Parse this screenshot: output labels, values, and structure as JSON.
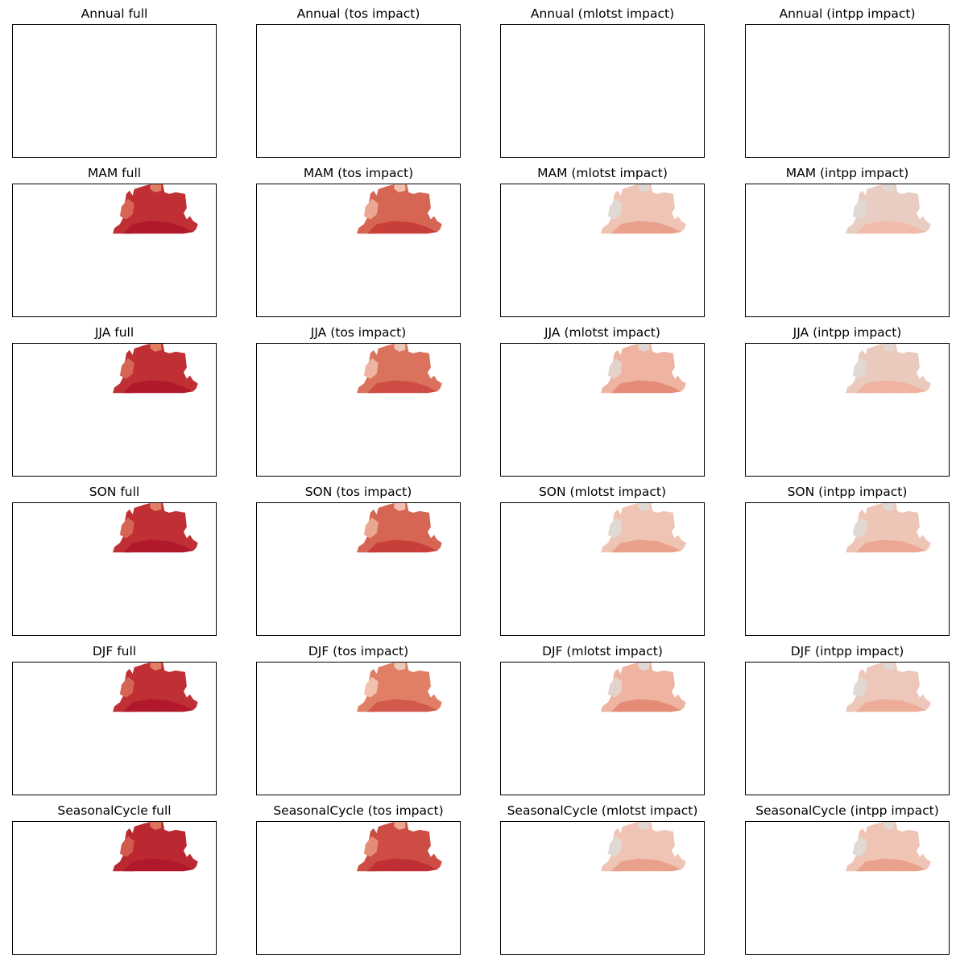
{
  "figure": {
    "rows": [
      "Annual",
      "MAM",
      "JJA",
      "SON",
      "DJF",
      "SeasonalCycle"
    ],
    "columns": [
      "full",
      "tos impact",
      "mlotst impact",
      "intpp impact"
    ]
  },
  "colors": {
    "neutral": "#e0d8d2",
    "light": "#f2c1b0",
    "medium": "#e07f66",
    "strong": "#c83f3a",
    "dark": "#b2182b",
    "frame": "#000000"
  },
  "chart_data": [
    {
      "type": "heatmap",
      "title": "Annual full",
      "has_data": false,
      "intensity": 0
    },
    {
      "type": "heatmap",
      "title": "Annual (tos impact)",
      "has_data": false,
      "intensity": 0
    },
    {
      "type": "heatmap",
      "title": "Annual (mlotst impact)",
      "has_data": false,
      "intensity": 0
    },
    {
      "type": "heatmap",
      "title": "Annual (intpp impact)",
      "has_data": false,
      "intensity": 0
    },
    {
      "type": "heatmap",
      "title": "MAM full",
      "has_data": true,
      "intensity": 0.85
    },
    {
      "type": "heatmap",
      "title": "MAM (tos impact)",
      "has_data": true,
      "intensity": 0.6
    },
    {
      "type": "heatmap",
      "title": "MAM (mlotst impact)",
      "has_data": true,
      "intensity": 0.22
    },
    {
      "type": "heatmap",
      "title": "MAM (intpp impact)",
      "has_data": true,
      "intensity": 0.12
    },
    {
      "type": "heatmap",
      "title": "JJA full",
      "has_data": true,
      "intensity": 0.85
    },
    {
      "type": "heatmap",
      "title": "JJA (tos impact)",
      "has_data": true,
      "intensity": 0.55
    },
    {
      "type": "heatmap",
      "title": "JJA (mlotst impact)",
      "has_data": true,
      "intensity": 0.3
    },
    {
      "type": "heatmap",
      "title": "JJA (intpp impact)",
      "has_data": true,
      "intensity": 0.15
    },
    {
      "type": "heatmap",
      "title": "SON full",
      "has_data": true,
      "intensity": 0.85
    },
    {
      "type": "heatmap",
      "title": "SON (tos impact)",
      "has_data": true,
      "intensity": 0.6
    },
    {
      "type": "heatmap",
      "title": "SON (mlotst impact)",
      "has_data": true,
      "intensity": 0.22
    },
    {
      "type": "heatmap",
      "title": "SON (intpp impact)",
      "has_data": true,
      "intensity": 0.2
    },
    {
      "type": "heatmap",
      "title": "DJF full",
      "has_data": true,
      "intensity": 0.85
    },
    {
      "type": "heatmap",
      "title": "DJF (tos impact)",
      "has_data": true,
      "intensity": 0.5
    },
    {
      "type": "heatmap",
      "title": "DJF (mlotst impact)",
      "has_data": true,
      "intensity": 0.3
    },
    {
      "type": "heatmap",
      "title": "DJF (intpp impact)",
      "has_data": true,
      "intensity": 0.18
    },
    {
      "type": "heatmap",
      "title": "SeasonalCycle full",
      "has_data": true,
      "intensity": 0.9
    },
    {
      "type": "heatmap",
      "title": "SeasonalCycle (tos impact)",
      "has_data": true,
      "intensity": 0.7
    },
    {
      "type": "heatmap",
      "title": "SeasonalCycle (mlotst impact)",
      "has_data": true,
      "intensity": 0.22
    },
    {
      "type": "heatmap",
      "title": "SeasonalCycle (intpp impact)",
      "has_data": true,
      "intensity": 0.22
    }
  ]
}
